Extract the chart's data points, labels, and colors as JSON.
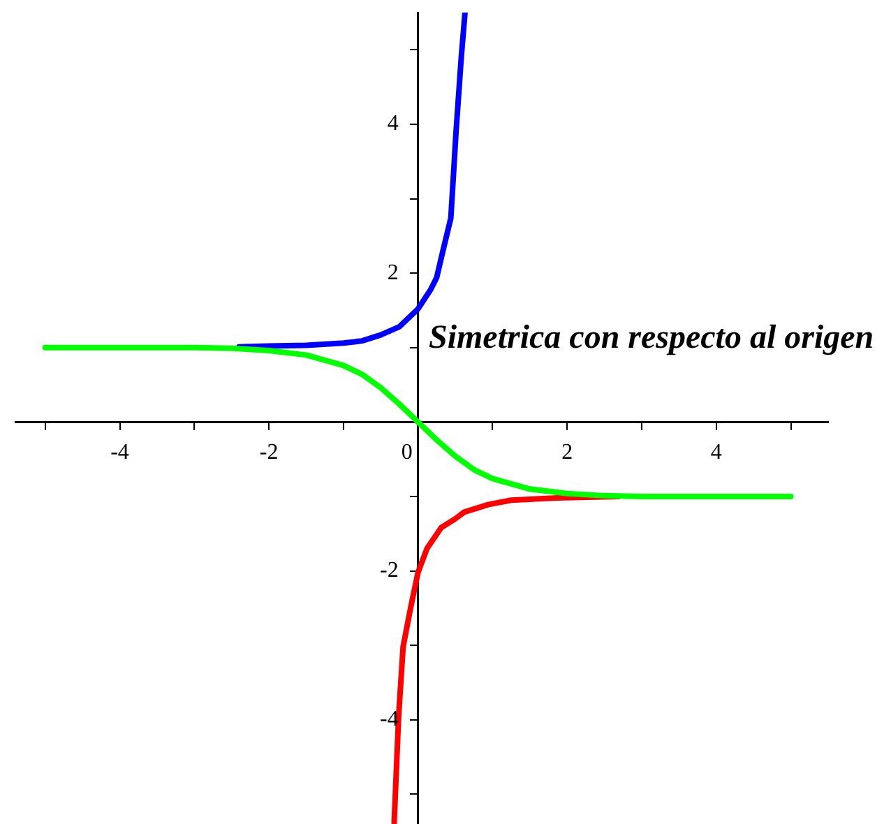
{
  "chart_data": {
    "type": "line",
    "xlim": [
      -5.4,
      5.5
    ],
    "ylim": [
      -5.4,
      5.5
    ],
    "xticks": [
      {
        "value": -5,
        "label": null
      },
      -4,
      {
        "value": -3,
        "label": null
      },
      -2,
      {
        "value": -1,
        "label": null
      },
      0,
      {
        "value": 1,
        "label": null
      },
      2,
      {
        "value": 3,
        "label": null
      },
      4,
      {
        "value": 5,
        "label": null
      }
    ],
    "yticks": [
      {
        "value": -5,
        "label": null
      },
      -4,
      {
        "value": -3,
        "label": null
      },
      -2,
      {
        "value": -1,
        "label": null
      },
      {
        "value": 1,
        "label": null
      },
      2,
      {
        "value": 3,
        "label": null
      },
      4,
      {
        "value": 5,
        "label": null
      }
    ],
    "marker": "none",
    "line_style": "solid",
    "annotations": [
      "Simetrica con respecto al origen"
    ],
    "series": [
      {
        "color": "#00ff00",
        "x": [
          -5,
          -4,
          -3,
          -2.5,
          -2,
          -1.5,
          -1,
          -0.75,
          -0.5,
          -0.25,
          0,
          0.25,
          0.5,
          0.75,
          1,
          1.5,
          2,
          2.5,
          3,
          4,
          5
        ],
        "values": [
          1,
          1,
          1,
          0.99,
          0.96,
          0.9,
          0.76,
          0.64,
          0.46,
          0.24,
          0,
          -0.24,
          -0.46,
          -0.64,
          -0.76,
          -0.9,
          -0.96,
          -0.99,
          -1,
          -1,
          -1
        ]
      },
      {
        "color": "#0000ff",
        "x": [
          -2.4,
          -2,
          -1.5,
          -1,
          -0.75,
          -0.5,
          -0.25,
          0,
          0.17,
          0.25,
          0.32,
          0.44,
          0.51,
          0.58,
          0.63
        ],
        "values": [
          1.01,
          1.02,
          1.03,
          1.06,
          1.09,
          1.17,
          1.28,
          1.52,
          1.78,
          1.94,
          2.24,
          2.74,
          3.9,
          4.9,
          5.5
        ]
      },
      {
        "color": "#ff0000",
        "x": [
          -0.32,
          -0.26,
          -0.2,
          -0.1,
          0,
          0.12,
          0.31,
          0.5,
          0.62,
          0.94,
          1.25,
          1.87,
          2.69
        ],
        "values": [
          -5.38,
          -3.95,
          -3.02,
          -2.5,
          -2.02,
          -1.7,
          -1.42,
          -1.3,
          -1.21,
          -1.11,
          -1.05,
          -1.02,
          -1
        ]
      }
    ]
  }
}
